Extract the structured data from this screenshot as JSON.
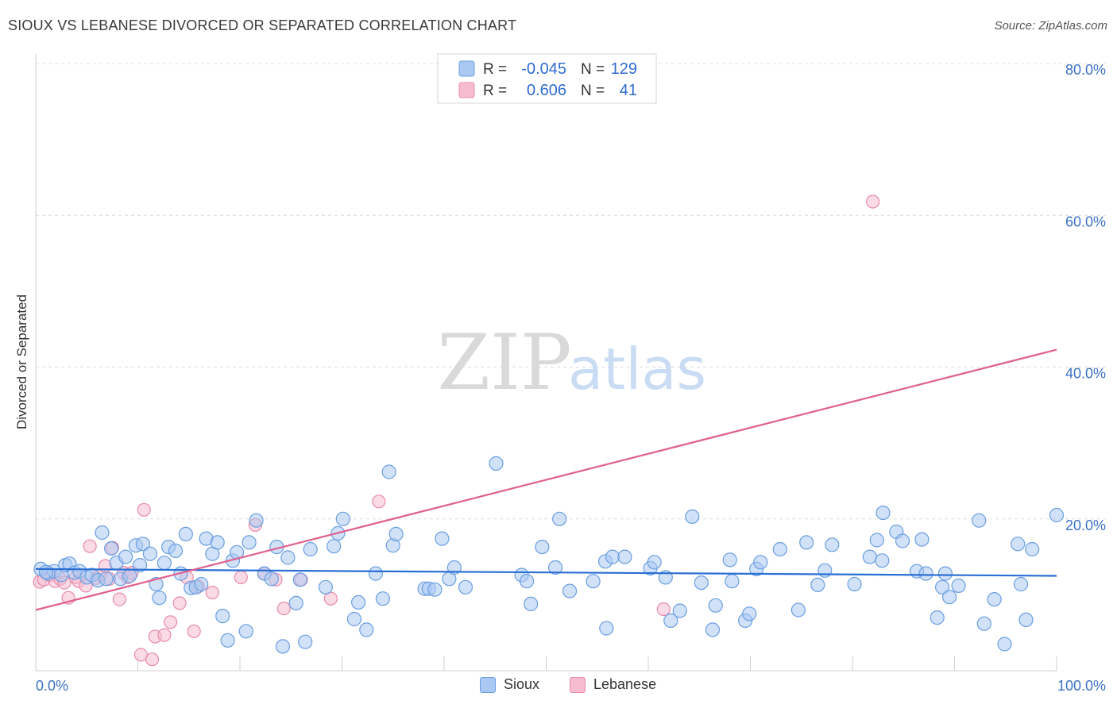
{
  "header": {
    "title": "SIOUX VS LEBANESE DIVORCED OR SEPARATED CORRELATION CHART",
    "source": "Source: ZipAtlas.com"
  },
  "watermark": {
    "zip": "ZIP",
    "atlas": "atlas"
  },
  "colors": {
    "sioux_fill": "#a9c8f2",
    "sioux_stroke": "#6a9fe0",
    "sioux_line": "#2a6fd4",
    "lebanese_fill": "#f6bcd0",
    "lebanese_stroke": "#e88aab",
    "lebanese_line": "#e0608e",
    "axis_text": "#3b72c8",
    "grid": "#dcdcdc"
  },
  "chart_data": {
    "type": "scatter",
    "title": "SIOUX VS LEBANESE DIVORCED OR SEPARATED CORRELATION CHART",
    "xlabel": "",
    "ylabel": "Divorced or Separated",
    "xlim": [
      0,
      100
    ],
    "ylim": [
      0,
      80
    ],
    "x_tick_labels": [
      "0.0%",
      "100.0%"
    ],
    "y_ticks": [
      20,
      40,
      60,
      80
    ],
    "y_tick_labels": [
      "20.0%",
      "40.0%",
      "60.0%",
      "80.0%"
    ],
    "grid": true,
    "legend_position": "top-center",
    "stats": [
      {
        "series": "Sioux",
        "r_label": "R =",
        "r": "-0.045",
        "n_label": "N =",
        "n": "129"
      },
      {
        "series": "Lebanese",
        "r_label": "R =",
        "r": "0.606",
        "n_label": "N =",
        "n": "41"
      }
    ],
    "series": [
      {
        "name": "Sioux",
        "trend": {
          "x": [
            0,
            100
          ],
          "y": [
            13.4,
            12.5
          ]
        },
        "points": [
          [
            0.5,
            13.4
          ],
          [
            1.2,
            12.8
          ],
          [
            1.8,
            13.1
          ],
          [
            2.5,
            12.6
          ],
          [
            2.9,
            13.9
          ],
          [
            3.3,
            14.1
          ],
          [
            3.8,
            12.9
          ],
          [
            4.3,
            13.1
          ],
          [
            5.0,
            12.3
          ],
          [
            5.5,
            12.6
          ],
          [
            6.1,
            11.9
          ],
          [
            6.5,
            18.2
          ],
          [
            6.9,
            12.1
          ],
          [
            7.4,
            16.1
          ],
          [
            7.9,
            14.2
          ],
          [
            8.3,
            12.1
          ],
          [
            8.8,
            15.0
          ],
          [
            9.2,
            12.5
          ],
          [
            9.8,
            16.5
          ],
          [
            10.2,
            13.9
          ],
          [
            10.5,
            16.7
          ],
          [
            11.2,
            15.4
          ],
          [
            11.8,
            11.4
          ],
          [
            12.1,
            9.6
          ],
          [
            12.6,
            14.2
          ],
          [
            13.0,
            16.3
          ],
          [
            13.7,
            15.8
          ],
          [
            14.2,
            12.8
          ],
          [
            14.7,
            18.0
          ],
          [
            15.2,
            10.9
          ],
          [
            15.7,
            11.0
          ],
          [
            16.2,
            11.4
          ],
          [
            16.7,
            17.4
          ],
          [
            17.3,
            15.4
          ],
          [
            17.8,
            16.9
          ],
          [
            18.3,
            7.2
          ],
          [
            18.8,
            4.0
          ],
          [
            19.3,
            14.5
          ],
          [
            19.7,
            15.6
          ],
          [
            20.6,
            5.2
          ],
          [
            20.9,
            16.9
          ],
          [
            21.6,
            19.8
          ],
          [
            22.4,
            12.8
          ],
          [
            23.1,
            12.1
          ],
          [
            23.6,
            16.3
          ],
          [
            24.2,
            3.2
          ],
          [
            24.7,
            14.9
          ],
          [
            25.5,
            8.9
          ],
          [
            25.9,
            12.0
          ],
          [
            26.4,
            3.8
          ],
          [
            26.9,
            16.0
          ],
          [
            28.4,
            11.0
          ],
          [
            29.2,
            16.4
          ],
          [
            29.6,
            18.1
          ],
          [
            30.1,
            20.0
          ],
          [
            31.2,
            6.8
          ],
          [
            31.6,
            9.0
          ],
          [
            32.4,
            5.4
          ],
          [
            33.3,
            12.8
          ],
          [
            34.0,
            9.5
          ],
          [
            34.6,
            26.2
          ],
          [
            35.0,
            16.5
          ],
          [
            35.3,
            18.0
          ],
          [
            38.1,
            10.8
          ],
          [
            38.5,
            10.8
          ],
          [
            39.1,
            10.7
          ],
          [
            39.8,
            17.4
          ],
          [
            40.5,
            12.1
          ],
          [
            41.0,
            13.6
          ],
          [
            42.1,
            11.0
          ],
          [
            45.1,
            27.3
          ],
          [
            47.6,
            12.6
          ],
          [
            48.1,
            11.8
          ],
          [
            48.5,
            8.8
          ],
          [
            49.6,
            16.3
          ],
          [
            50.9,
            13.6
          ],
          [
            51.3,
            20.0
          ],
          [
            52.3,
            10.5
          ],
          [
            54.6,
            11.8
          ],
          [
            55.8,
            14.4
          ],
          [
            55.9,
            5.6
          ],
          [
            56.5,
            15.0
          ],
          [
            57.7,
            15.0
          ],
          [
            60.2,
            13.5
          ],
          [
            60.6,
            14.3
          ],
          [
            61.7,
            12.3
          ],
          [
            62.2,
            6.6
          ],
          [
            63.1,
            7.9
          ],
          [
            64.3,
            20.3
          ],
          [
            65.2,
            11.6
          ],
          [
            66.3,
            5.4
          ],
          [
            66.6,
            8.6
          ],
          [
            68.0,
            14.6
          ],
          [
            68.2,
            11.8
          ],
          [
            69.5,
            6.6
          ],
          [
            69.9,
            7.5
          ],
          [
            70.6,
            13.4
          ],
          [
            71.0,
            14.3
          ],
          [
            72.9,
            16.0
          ],
          [
            74.7,
            8.0
          ],
          [
            75.5,
            16.9
          ],
          [
            76.6,
            11.3
          ],
          [
            77.3,
            13.2
          ],
          [
            78.0,
            16.6
          ],
          [
            80.2,
            11.4
          ],
          [
            81.7,
            15.0
          ],
          [
            82.4,
            17.2
          ],
          [
            82.9,
            14.5
          ],
          [
            83.0,
            20.8
          ],
          [
            84.3,
            18.3
          ],
          [
            84.9,
            17.1
          ],
          [
            86.3,
            13.1
          ],
          [
            86.8,
            17.3
          ],
          [
            87.2,
            12.8
          ],
          [
            88.3,
            7.0
          ],
          [
            88.8,
            11.0
          ],
          [
            89.1,
            12.8
          ],
          [
            89.5,
            9.7
          ],
          [
            90.4,
            11.2
          ],
          [
            92.4,
            19.8
          ],
          [
            92.9,
            6.2
          ],
          [
            93.9,
            9.4
          ],
          [
            94.9,
            3.5
          ],
          [
            96.2,
            16.7
          ],
          [
            96.5,
            11.4
          ],
          [
            97.0,
            6.7
          ],
          [
            97.6,
            16.0
          ],
          [
            100.0,
            20.5
          ],
          [
            1.0,
            13.0
          ]
        ]
      },
      {
        "name": "Lebanese",
        "trend": {
          "x": [
            0,
            100
          ],
          "y": [
            8.0,
            42.3
          ]
        },
        "points": [
          [
            0.4,
            11.7
          ],
          [
            0.8,
            12.0
          ],
          [
            1.4,
            12.6
          ],
          [
            1.9,
            11.8
          ],
          [
            2.4,
            12.1
          ],
          [
            2.8,
            11.6
          ],
          [
            3.2,
            9.6
          ],
          [
            3.9,
            12.3
          ],
          [
            4.2,
            11.8
          ],
          [
            4.9,
            11.2
          ],
          [
            5.3,
            16.4
          ],
          [
            5.9,
            12.2
          ],
          [
            6.3,
            12.6
          ],
          [
            6.8,
            13.8
          ],
          [
            7.2,
            12.1
          ],
          [
            7.5,
            16.2
          ],
          [
            8.2,
            9.4
          ],
          [
            8.6,
            12.9
          ],
          [
            9.0,
            12.3
          ],
          [
            9.4,
            12.9
          ],
          [
            10.3,
            2.1
          ],
          [
            10.6,
            21.2
          ],
          [
            11.4,
            1.5
          ],
          [
            11.7,
            4.5
          ],
          [
            12.6,
            4.7
          ],
          [
            13.2,
            6.4
          ],
          [
            14.1,
            8.9
          ],
          [
            14.8,
            12.3
          ],
          [
            15.5,
            5.2
          ],
          [
            15.9,
            11.1
          ],
          [
            17.3,
            10.3
          ],
          [
            20.1,
            12.3
          ],
          [
            21.5,
            19.2
          ],
          [
            22.4,
            12.8
          ],
          [
            23.5,
            12.0
          ],
          [
            24.3,
            8.2
          ],
          [
            26.0,
            12.0
          ],
          [
            28.9,
            9.5
          ],
          [
            33.6,
            22.3
          ],
          [
            61.5,
            8.1
          ],
          [
            82.0,
            61.8
          ]
        ]
      }
    ]
  }
}
